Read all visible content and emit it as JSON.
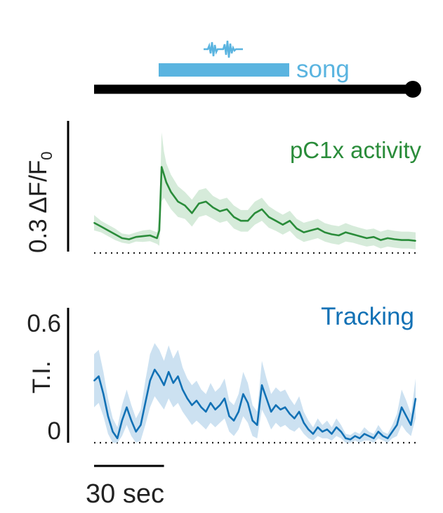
{
  "colors": {
    "timeline": "#000000",
    "song": "#5ab4e0",
    "pc1x": "#2a8c3a",
    "pc1x_band": "#cfe8d4",
    "tracking": "#1271b5",
    "tracking_band": "#c3dcef",
    "baseline": "#222222",
    "text": "#222222"
  },
  "stimulus": {
    "song_label": "song",
    "song_icon": "song-waveform-icon"
  },
  "chart_data": [
    {
      "type": "line",
      "title": "pC1x activity",
      "ylabel": "0.3 ΔF/F",
      "ylabel_subscript": "0",
      "scale_bar_value": 0.3,
      "ylim": [
        -0.02,
        0.32
      ],
      "baseline": 0,
      "x_unit": "sec",
      "xlim": [
        0,
        138
      ],
      "stimulus_window_sec": [
        28,
        84
      ],
      "x": [
        0,
        3,
        6,
        9,
        12,
        15,
        18,
        21,
        24,
        27,
        28,
        29,
        30,
        31,
        33,
        36,
        39,
        42,
        45,
        48,
        51,
        54,
        57,
        60,
        63,
        66,
        69,
        72,
        75,
        78,
        81,
        84,
        87,
        90,
        93,
        96,
        99,
        102,
        105,
        108,
        111,
        114,
        117,
        120,
        123,
        126,
        129,
        132,
        135,
        138
      ],
      "series": [
        {
          "name": "pC1x activity",
          "values": [
            0.055,
            0.045,
            0.035,
            0.025,
            0.015,
            0.012,
            0.018,
            0.02,
            0.022,
            0.015,
            0.035,
            0.2,
            0.18,
            0.16,
            0.135,
            0.11,
            0.1,
            0.08,
            0.105,
            0.11,
            0.095,
            0.085,
            0.09,
            0.07,
            0.06,
            0.06,
            0.08,
            0.09,
            0.07,
            0.06,
            0.05,
            0.06,
            0.04,
            0.03,
            0.035,
            0.04,
            0.03,
            0.025,
            0.022,
            0.03,
            0.025,
            0.02,
            0.015,
            0.018,
            0.01,
            0.015,
            0.012,
            0.01,
            0.01,
            0.008
          ],
          "sem": [
            0.02,
            0.015,
            0.015,
            0.015,
            0.012,
            0.012,
            0.012,
            0.015,
            0.015,
            0.015,
            0.04,
            0.09,
            0.06,
            0.05,
            0.045,
            0.04,
            0.035,
            0.035,
            0.035,
            0.035,
            0.03,
            0.03,
            0.03,
            0.03,
            0.028,
            0.028,
            0.03,
            0.03,
            0.028,
            0.026,
            0.026,
            0.026,
            0.025,
            0.025,
            0.025,
            0.025,
            0.024,
            0.024,
            0.024,
            0.024,
            0.022,
            0.022,
            0.022,
            0.022,
            0.022,
            0.022,
            0.022,
            0.022,
            0.022,
            0.022
          ]
        }
      ],
      "grid": false
    },
    {
      "type": "line",
      "title": "Tracking",
      "ylabel": "T.I.",
      "yticks": [
        "0.6",
        "0"
      ],
      "ylim": [
        0,
        0.6
      ],
      "baseline": 0,
      "x_unit": "sec",
      "xlim": [
        0,
        138
      ],
      "x": [
        0,
        2,
        4,
        6,
        8,
        10,
        12,
        14,
        16,
        18,
        20,
        22,
        24,
        26,
        28,
        30,
        32,
        34,
        36,
        38,
        40,
        42,
        44,
        46,
        48,
        50,
        52,
        54,
        56,
        58,
        60,
        62,
        64,
        66,
        68,
        70,
        72,
        74,
        76,
        78,
        80,
        82,
        84,
        86,
        88,
        90,
        92,
        94,
        96,
        98,
        100,
        102,
        104,
        106,
        108,
        110,
        112,
        114,
        116,
        118,
        120,
        122,
        124,
        126,
        128,
        130,
        132,
        134,
        136,
        138
      ],
      "series": [
        {
          "name": "Tracking",
          "values": [
            0.28,
            0.3,
            0.22,
            0.12,
            0.05,
            0.02,
            0.1,
            0.16,
            0.1,
            0.05,
            0.08,
            0.18,
            0.28,
            0.33,
            0.3,
            0.26,
            0.32,
            0.27,
            0.3,
            0.24,
            0.2,
            0.17,
            0.19,
            0.16,
            0.14,
            0.18,
            0.15,
            0.17,
            0.2,
            0.12,
            0.1,
            0.14,
            0.22,
            0.18,
            0.1,
            0.08,
            0.26,
            0.2,
            0.14,
            0.17,
            0.15,
            0.16,
            0.13,
            0.11,
            0.14,
            0.09,
            0.06,
            0.04,
            0.07,
            0.05,
            0.06,
            0.04,
            0.07,
            0.05,
            0.02,
            0.015,
            0.03,
            0.02,
            0.04,
            0.03,
            0.02,
            0.05,
            0.03,
            0.02,
            0.05,
            0.08,
            0.16,
            0.12,
            0.08,
            0.2
          ],
          "sem": [
            0.12,
            0.12,
            0.1,
            0.08,
            0.06,
            0.05,
            0.07,
            0.08,
            0.07,
            0.06,
            0.07,
            0.1,
            0.12,
            0.12,
            0.12,
            0.11,
            0.12,
            0.11,
            0.12,
            0.1,
            0.09,
            0.09,
            0.09,
            0.08,
            0.08,
            0.09,
            0.08,
            0.08,
            0.09,
            0.07,
            0.07,
            0.08,
            0.1,
            0.09,
            0.07,
            0.06,
            0.11,
            0.09,
            0.08,
            0.08,
            0.08,
            0.08,
            0.07,
            0.06,
            0.07,
            0.05,
            0.04,
            0.03,
            0.04,
            0.03,
            0.04,
            0.03,
            0.04,
            0.03,
            0.02,
            0.02,
            0.02,
            0.02,
            0.03,
            0.02,
            0.02,
            0.03,
            0.02,
            0.02,
            0.03,
            0.05,
            0.08,
            0.07,
            0.05,
            0.09
          ]
        }
      ],
      "grid": false
    }
  ],
  "time_scale_bar": {
    "label": "30 sec",
    "value": 30
  }
}
